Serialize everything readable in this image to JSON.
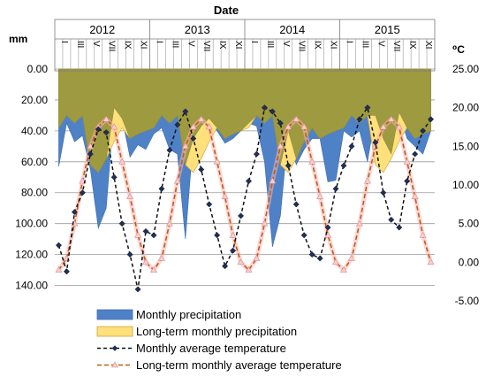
{
  "chart_data": {
    "type": "area",
    "title": "Date",
    "years": [
      "2012",
      "2013",
      "2014",
      "2015"
    ],
    "month_labels": [
      "I",
      "III",
      "V",
      "VII",
      "IX",
      "XI"
    ],
    "y_left": {
      "label": "mm",
      "min": 0,
      "max": 150,
      "step": 20,
      "inverted": true,
      "tick_labels": [
        "0.00",
        "20.00",
        "40.00",
        "60.00",
        "80.00",
        "100.00",
        "120.00",
        "140.00"
      ]
    },
    "y_right": {
      "label": "⁰C",
      "min": -5,
      "max": 25,
      "step": 5,
      "tick_labels": [
        "25.00",
        "20.00",
        "15.00",
        "10.00",
        "5.00",
        "0.00",
        "-5.00"
      ]
    },
    "series": [
      {
        "name": "Monthly precipitation",
        "color": "#4f81c7",
        "axis": "left",
        "values": [
          63,
          35,
          47,
          43,
          65,
          103,
          90,
          25,
          32,
          57,
          49,
          52,
          42,
          38,
          52,
          55,
          110,
          45,
          37,
          32,
          40,
          48,
          45,
          40,
          35,
          37,
          60,
          115,
          95,
          40,
          62,
          52,
          45,
          45,
          73,
          72,
          40,
          44,
          40,
          60,
          30,
          45,
          55,
          28,
          45,
          50,
          55,
          40
        ]
      },
      {
        "name": "Long-term monthly precipitation",
        "color": "#ffe07a",
        "axis": "left",
        "values": [
          38,
          30,
          35,
          30,
          62,
          67,
          58,
          47,
          38,
          45,
          42,
          40,
          38,
          30,
          35,
          30,
          62,
          67,
          58,
          47,
          38,
          45,
          42,
          40,
          38,
          30,
          35,
          30,
          62,
          67,
          58,
          47,
          38,
          45,
          42,
          40,
          38,
          30,
          35,
          30,
          62,
          67,
          58,
          47,
          38,
          45,
          42,
          40
        ]
      },
      {
        "name": "Monthly average temperature",
        "color": "#1f2f55",
        "axis": "right",
        "values": [
          2.2,
          -1.2,
          6.5,
          9.0,
          14.0,
          17.2,
          16.8,
          11.0,
          5.0,
          1.0,
          -3.5,
          4.0,
          3.5,
          9.5,
          14.5,
          17.8,
          19.5,
          16.0,
          12.0,
          7.5,
          3.5,
          -0.5,
          1.5,
          6.0,
          10.5,
          14.0,
          20.0,
          19.5,
          18.0,
          12.5,
          7.5,
          3.5,
          1.0,
          0.5,
          4.5,
          9.5,
          12.5,
          15.0,
          18.5,
          20.0,
          15.5,
          9.0,
          5.5,
          4.5,
          10.5,
          14.0,
          17.0,
          18.5
        ]
      },
      {
        "name": "Long-term monthly average temperature",
        "color": "#c55a11",
        "axis": "right",
        "values": [
          -1.0,
          0.5,
          5.0,
          10.5,
          15.0,
          17.5,
          18.5,
          17.5,
          13.0,
          8.5,
          3.5,
          0.0,
          -1.0,
          0.5,
          5.0,
          10.5,
          15.0,
          17.5,
          18.5,
          17.5,
          13.0,
          8.5,
          3.5,
          0.0,
          -1.0,
          0.5,
          5.0,
          10.5,
          15.0,
          17.5,
          18.5,
          17.5,
          13.0,
          8.5,
          3.5,
          0.0,
          -1.0,
          0.5,
          5.0,
          10.5,
          15.0,
          17.5,
          18.5,
          17.5,
          13.0,
          8.5,
          3.5,
          0.0
        ]
      }
    ],
    "legend_position": "bottom",
    "grid": true
  }
}
